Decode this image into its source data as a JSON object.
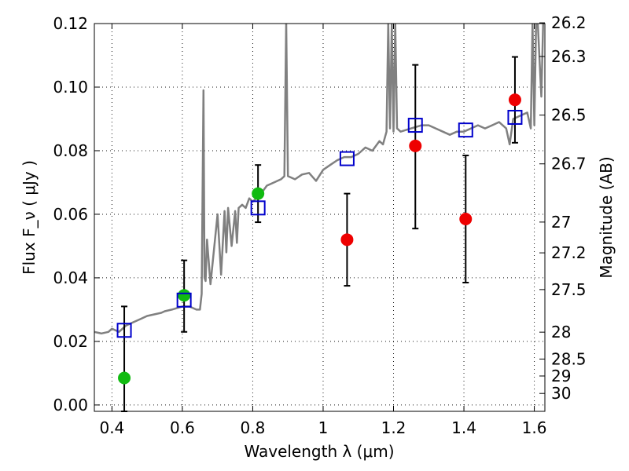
{
  "chart_data": {
    "type": "scatter",
    "xlabel": "Wavelength  λ (μm)",
    "ylabel": "Flux  F_ν  ( μJy )",
    "ylabel_right": "Magnitude (AB)",
    "xlim": [
      0.35,
      1.63
    ],
    "ylim": [
      -0.002,
      0.12
    ],
    "x_ticks": [
      0.4,
      0.6,
      0.8,
      1.0,
      1.2,
      1.4,
      1.6
    ],
    "x_tick_labels": [
      "0.4",
      "0.6",
      "0.8",
      "1",
      "1.2",
      "1.4",
      "1.6"
    ],
    "y_ticks": [
      0.0,
      0.02,
      0.04,
      0.06,
      0.08,
      0.1,
      0.12
    ],
    "y_tick_labels": [
      "0.00",
      "0.02",
      "0.04",
      "0.06",
      "0.08",
      "0.10",
      "0.12"
    ],
    "right_ticks": [
      {
        "label": "26.2",
        "mag": 26.2
      },
      {
        "label": "26.3",
        "mag": 26.3
      },
      {
        "label": "26.5",
        "mag": 26.5
      },
      {
        "label": "26.7",
        "mag": 26.7
      },
      {
        "label": "27",
        "mag": 27.0
      },
      {
        "label": "27.2",
        "mag": 27.2
      },
      {
        "label": "27.5",
        "mag": 27.5
      },
      {
        "label": "28",
        "mag": 28.0
      },
      {
        "label": "28.5",
        "mag": 28.5
      },
      {
        "label": "29",
        "mag": 29.0
      },
      {
        "label": "30",
        "mag": 30.0
      }
    ],
    "grid": true,
    "colors": {
      "model": "#808080",
      "green": "#11bb11",
      "red": "#ee0000",
      "square": "#0000cc",
      "errorbar": "#000000"
    },
    "series": [
      {
        "name": "model spectrum",
        "type": "line",
        "x": [
          0.35,
          0.37,
          0.39,
          0.4,
          0.42,
          0.44,
          0.46,
          0.47,
          0.48,
          0.5,
          0.52,
          0.54,
          0.55,
          0.57,
          0.6,
          0.62,
          0.64,
          0.65,
          0.655,
          0.66,
          0.663,
          0.666,
          0.67,
          0.68,
          0.7,
          0.71,
          0.72,
          0.725,
          0.73,
          0.74,
          0.75,
          0.755,
          0.76,
          0.77,
          0.78,
          0.79,
          0.8,
          0.82,
          0.84,
          0.86,
          0.88,
          0.89,
          0.895,
          0.9,
          0.92,
          0.94,
          0.96,
          0.98,
          1.0,
          1.02,
          1.04,
          1.06,
          1.08,
          1.1,
          1.12,
          1.14,
          1.16,
          1.17,
          1.18,
          1.185,
          1.19,
          1.195,
          1.2,
          1.205,
          1.21,
          1.22,
          1.25,
          1.28,
          1.3,
          1.32,
          1.34,
          1.36,
          1.38,
          1.4,
          1.42,
          1.44,
          1.46,
          1.48,
          1.5,
          1.52,
          1.53,
          1.54,
          1.56,
          1.58,
          1.59,
          1.595,
          1.6,
          1.605,
          1.61,
          1.62,
          1.625
        ],
        "y": [
          0.023,
          0.0225,
          0.023,
          0.024,
          0.023,
          0.025,
          0.026,
          0.0265,
          0.027,
          0.028,
          0.0285,
          0.029,
          0.0295,
          0.03,
          0.031,
          0.031,
          0.03,
          0.03,
          0.035,
          0.099,
          0.04,
          0.039,
          0.052,
          0.038,
          0.06,
          0.041,
          0.061,
          0.048,
          0.062,
          0.05,
          0.061,
          0.051,
          0.062,
          0.063,
          0.062,
          0.065,
          0.064,
          0.066,
          0.069,
          0.07,
          0.071,
          0.072,
          0.12,
          0.072,
          0.071,
          0.0725,
          0.073,
          0.0705,
          0.074,
          0.0755,
          0.077,
          0.078,
          0.078,
          0.079,
          0.081,
          0.08,
          0.083,
          0.082,
          0.086,
          0.12,
          0.087,
          0.12,
          0.086,
          0.12,
          0.087,
          0.086,
          0.087,
          0.088,
          0.088,
          0.087,
          0.086,
          0.085,
          0.086,
          0.086,
          0.087,
          0.088,
          0.087,
          0.088,
          0.089,
          0.087,
          0.082,
          0.09,
          0.091,
          0.092,
          0.087,
          0.12,
          0.088,
          0.12,
          0.12,
          0.097,
          0.12
        ]
      },
      {
        "name": "green points",
        "type": "scatter",
        "x": [
          0.435,
          0.605,
          0.815
        ],
        "y": [
          0.0085,
          0.0345,
          0.0665
        ]
      },
      {
        "name": "red points",
        "type": "scatter",
        "x": [
          1.068,
          1.262,
          1.405,
          1.545
        ],
        "y": [
          0.052,
          0.0815,
          0.0585,
          0.096
        ]
      },
      {
        "name": "model squares",
        "type": "scatter",
        "x": [
          0.435,
          0.605,
          0.815,
          1.068,
          1.262,
          1.405,
          1.545
        ],
        "y": [
          0.0235,
          0.033,
          0.062,
          0.0775,
          0.088,
          0.0865,
          0.0905
        ]
      },
      {
        "name": "error bars",
        "type": "errorbar",
        "x": [
          0.435,
          0.605,
          0.815,
          1.068,
          1.262,
          1.405,
          1.545
        ],
        "low": [
          -0.002,
          0.023,
          0.0575,
          0.0375,
          0.0555,
          0.0385,
          0.0825
        ],
        "high": [
          0.031,
          0.0455,
          0.0755,
          0.0665,
          0.107,
          0.0785,
          0.1095
        ]
      }
    ]
  }
}
